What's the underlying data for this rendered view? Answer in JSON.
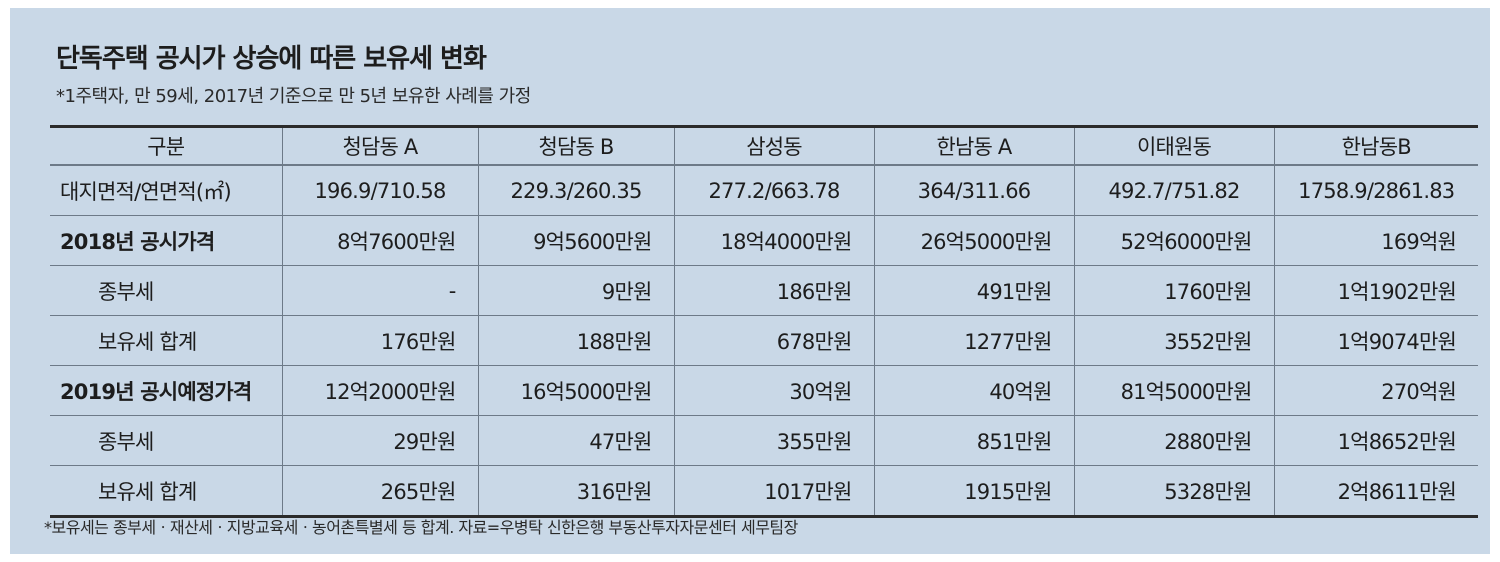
{
  "title": "단독주택 공시가 상승에 따른 보유세 변화",
  "subtitle": "*1주택자, 만 59세, 2017년 기준으로 만 5년 보유한 사례를 가정",
  "footnote": "*보유세는 종부세ㆍ재산세ㆍ지방교육세ㆍ농어촌특별세 등 합계. 자료=우병탁 신한은행 부동산투자자문센터 세무팀장",
  "table": {
    "headers": [
      "구분",
      "청담동 A",
      "청담동 B",
      "삼성동",
      "한남동 A",
      "이태원동",
      "한남동B"
    ],
    "rows": [
      {
        "label": "대지면적/연면적(㎡)",
        "cells": [
          "196.9/710.58",
          "229.3/260.35",
          "277.2/663.78",
          "364/311.66",
          "492.7/751.82",
          "1758.9/2861.83"
        ]
      },
      {
        "label": "2018년 공시가격",
        "cells": [
          "8억7600만원",
          "9억5600만원",
          "18억4000만원",
          "26억5000만원",
          "52억6000만원",
          "169억원"
        ]
      },
      {
        "label": "종부세",
        "cells": [
          "-",
          "9만원",
          "186만원",
          "491만원",
          "1760만원",
          "1억1902만원"
        ]
      },
      {
        "label": "보유세 합계",
        "cells": [
          "176만원",
          "188만원",
          "678만원",
          "1277만원",
          "3552만원",
          "1억9074만원"
        ]
      },
      {
        "label": "2019년 공시예정가격",
        "cells": [
          "12억2000만원",
          "16억5000만원",
          "30억원",
          "40억원",
          "81억5000만원",
          "270억원"
        ]
      },
      {
        "label": "종부세",
        "cells": [
          "29만원",
          "47만원",
          "355만원",
          "851만원",
          "2880만원",
          "1억8652만원"
        ]
      },
      {
        "label": "보유세 합계",
        "cells": [
          "265만원",
          "316만원",
          "1017만원",
          "1915만원",
          "5328만원",
          "2억8611만원"
        ]
      }
    ]
  }
}
